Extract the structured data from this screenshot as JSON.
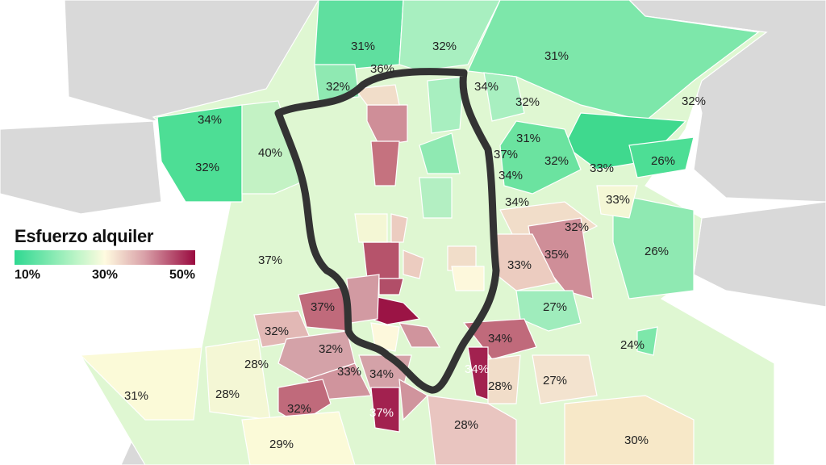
{
  "legend": {
    "title": "Esfuerzo alquiler",
    "ticks": [
      "10%",
      "30%",
      "50%"
    ],
    "colors": {
      "low": "#2fd891",
      "mid": "#fffbe0",
      "high": "#990a3f"
    }
  },
  "map": {
    "outside_color": "#d9d9d9",
    "ring_color": "#333333",
    "labels": [
      "31%",
      "32%",
      "31%",
      "36%",
      "32%",
      "34%",
      "32%",
      "32%",
      "34%",
      "40%",
      "31%",
      "37%",
      "32%",
      "33%",
      "26%",
      "32%",
      "34%",
      "34%",
      "33%",
      "32%",
      "37%",
      "35%",
      "26%",
      "33%",
      "27%",
      "37%",
      "32%",
      "34%",
      "24%",
      "32%",
      "28%",
      "33%",
      "34%",
      "34%",
      "28%",
      "27%",
      "31%",
      "28%",
      "32%",
      "37%",
      "28%",
      "30%",
      "29%"
    ]
  }
}
